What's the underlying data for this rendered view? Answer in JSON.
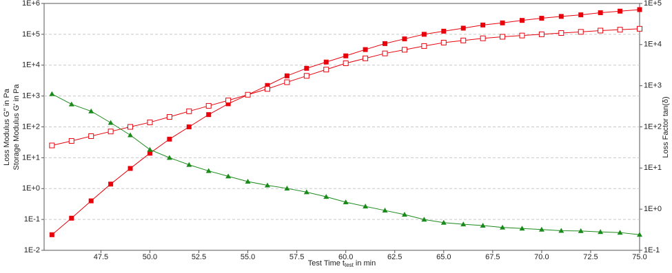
{
  "chart_data": {
    "type": "line",
    "log_y": true,
    "log_y2": true,
    "grid": true,
    "x_label": [
      "Test Time t",
      "test",
      "in min"
    ],
    "y_label": [
      "Loss Modulus G'' in Pa",
      "Storage Modulus G' in Pa"
    ],
    "y2_label": "Loss Factor tan(δ)",
    "xlim": [
      44.6,
      75.0
    ],
    "xticks": [
      {
        "value": 47.5,
        "label": "47.5"
      },
      {
        "value": 50,
        "label": "50.0"
      },
      {
        "value": 52.5,
        "label": "52.5"
      },
      {
        "value": 55,
        "label": "55.0"
      },
      {
        "value": 57.5,
        "label": "57.5"
      },
      {
        "value": 60,
        "label": "60.0"
      },
      {
        "value": 62.5,
        "label": "62.5"
      },
      {
        "value": 65,
        "label": "65.0"
      },
      {
        "value": 67.5,
        "label": "67.5"
      },
      {
        "value": 70,
        "label": "70.0"
      },
      {
        "value": 72.5,
        "label": "72.5"
      },
      {
        "value": 75,
        "label": "75.0"
      }
    ],
    "ylim": [
      0.01,
      1000000
    ],
    "yticks": [
      {
        "value": 0.01,
        "label": "1E-2"
      },
      {
        "value": 0.1,
        "label": "1E-1"
      },
      {
        "value": 1,
        "label": "1E+0"
      },
      {
        "value": 10,
        "label": "1E+1"
      },
      {
        "value": 100,
        "label": "1E+2"
      },
      {
        "value": 1000,
        "label": "1E+3"
      },
      {
        "value": 10000,
        "label": "1E+4"
      },
      {
        "value": 100000,
        "label": "1E+5"
      },
      {
        "value": 1000000,
        "label": "1E+6"
      }
    ],
    "y2lim": [
      0.1,
      100000
    ],
    "y2ticks": [
      {
        "value": 0.1,
        "label": "1E-1"
      },
      {
        "value": 1,
        "label": "1E+0"
      },
      {
        "value": 10,
        "label": "1E+1"
      },
      {
        "value": 100,
        "label": "1E+2"
      },
      {
        "value": 1000,
        "label": "1E+3"
      },
      {
        "value": 10000,
        "label": "1E+4"
      },
      {
        "value": 100000,
        "label": "1E+5"
      }
    ],
    "x": [
      45,
      46,
      47,
      48,
      49,
      50,
      51,
      52,
      53,
      54,
      55,
      56,
      57,
      58,
      59,
      60,
      61,
      62,
      63,
      64,
      65,
      66,
      67,
      68,
      69,
      70,
      71,
      72,
      73,
      74,
      75
    ],
    "series": [
      {
        "color": "#e8000b",
        "marker": "square-filled",
        "values": [
          0.032,
          0.11,
          0.4,
          1.4,
          4.5,
          14,
          40,
          100,
          250,
          560,
          1100,
          2200,
          4500,
          7900,
          12600,
          20000,
          32000,
          50000,
          71000,
          100000,
          126000,
          158000,
          200000,
          234000,
          282000,
          331000,
          380000,
          427000,
          501000,
          562000,
          631000
        ]
      },
      {
        "color": "#e8000b",
        "marker": "square-open",
        "values": [
          25,
          35,
          50,
          71,
          100,
          140,
          210,
          320,
          480,
          720,
          1100,
          1700,
          2800,
          4500,
          7200,
          11500,
          16600,
          24000,
          31600,
          41700,
          53700,
          63100,
          74100,
          83200,
          91200,
          100000,
          110000,
          120000,
          132000,
          141000,
          151000
        ]
      },
      {
        "color": "#1a8a1a",
        "marker": "triangle-filled",
        "axis": "y2",
        "values": [
          630,
          355,
          240,
          126,
          63,
          28,
          17.8,
          12,
          8.5,
          6.3,
          4.7,
          3.8,
          3.2,
          2.6,
          2.0,
          1.48,
          1.17,
          0.93,
          0.74,
          0.56,
          0.47,
          0.43,
          0.4,
          0.36,
          0.34,
          0.32,
          0.3,
          0.295,
          0.28,
          0.27,
          0.24
        ]
      }
    ]
  }
}
